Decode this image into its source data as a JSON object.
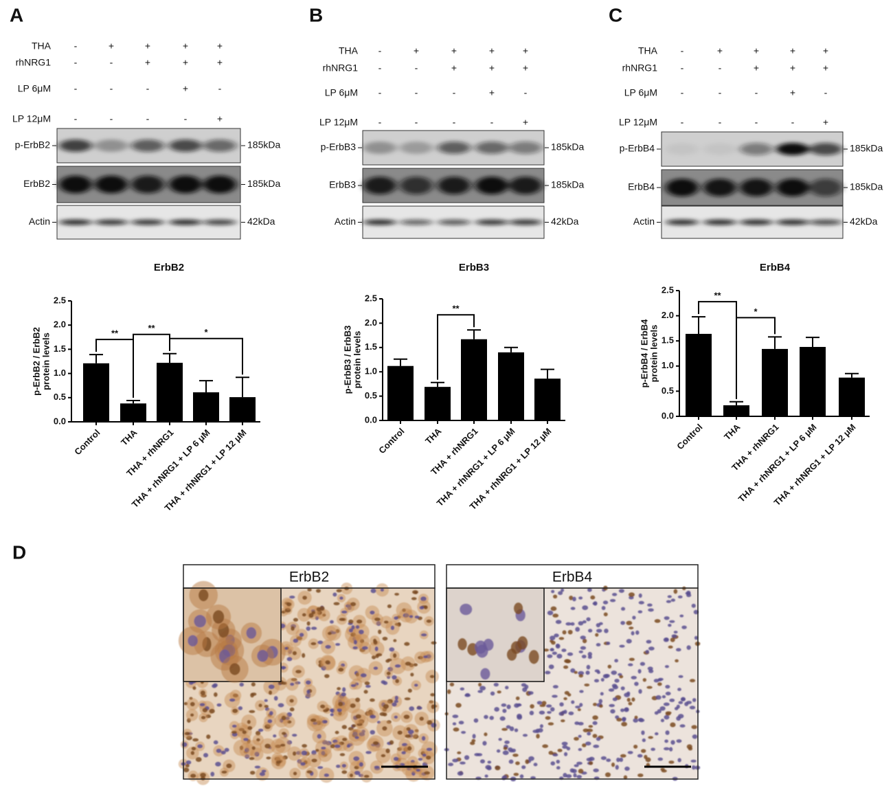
{
  "panel_labels": [
    "A",
    "B",
    "C",
    "D"
  ],
  "blots": [
    {
      "conditions": [
        {
          "label": "THA",
          "lanes": [
            "-",
            "+",
            "+",
            "+",
            "+"
          ]
        },
        {
          "label": "rhNRG1",
          "lanes": [
            "-",
            "-",
            "+",
            "+",
            "+"
          ]
        },
        {
          "label": "LP 6μM",
          "lanes": [
            "-",
            "-",
            "-",
            "+",
            "-"
          ]
        },
        {
          "label": "LP 12μM",
          "lanes": [
            "-",
            "-",
            "-",
            "-",
            "+"
          ]
        }
      ],
      "bands": [
        {
          "label": "p-ErbB2",
          "size": "185kDa"
        },
        {
          "label": "ErbB2",
          "size": "185kDa"
        },
        {
          "label": "Actin",
          "size": "42kDa"
        }
      ]
    },
    {
      "conditions": [
        {
          "label": "THA",
          "lanes": [
            "-",
            "+",
            "+",
            "+",
            "+"
          ]
        },
        {
          "label": "rhNRG1",
          "lanes": [
            "-",
            "-",
            "+",
            "+",
            "+"
          ]
        },
        {
          "label": "LP 6μM",
          "lanes": [
            "-",
            "-",
            "-",
            "+",
            "-"
          ]
        },
        {
          "label": "LP 12μM",
          "lanes": [
            "-",
            "-",
            "-",
            "-",
            "+"
          ]
        }
      ],
      "bands": [
        {
          "label": "p-ErbB3",
          "size": "185kDa"
        },
        {
          "label": "ErbB3",
          "size": "185kDa"
        },
        {
          "label": "Actin",
          "size": "42kDa"
        }
      ]
    },
    {
      "conditions": [
        {
          "label": "THA",
          "lanes": [
            "-",
            "+",
            "+",
            "+",
            "+"
          ]
        },
        {
          "label": "rhNRG1",
          "lanes": [
            "-",
            "-",
            "+",
            "+",
            "+"
          ]
        },
        {
          "label": "LP 6μM",
          "lanes": [
            "-",
            "-",
            "-",
            "+",
            "-"
          ]
        },
        {
          "label": "LP 12μM",
          "lanes": [
            "-",
            "-",
            "-",
            "-",
            "+"
          ]
        }
      ],
      "bands": [
        {
          "label": "p-ErbB4",
          "size": "185kDa"
        },
        {
          "label": "ErbB4",
          "size": "185kDa"
        },
        {
          "label": "Actin",
          "size": "42kDa"
        }
      ]
    }
  ],
  "chart_data": [
    {
      "type": "bar",
      "title": "ErbB2",
      "ylabel": [
        "p-ErbB2 / ErbB2",
        "protein levels"
      ],
      "categories": [
        "Control",
        "THA",
        "THA + rhNRG1",
        "THA + rhNRG1 + LP 6 μM",
        "THA + rhNRG1 + LP 12 μM"
      ],
      "values": [
        1.21,
        0.38,
        1.22,
        0.61,
        0.51
      ],
      "errors": [
        0.18,
        0.06,
        0.19,
        0.24,
        0.41
      ],
      "color": "#000000",
      "ylim": [
        0,
        2.5
      ],
      "yticks": [
        {
          "value": 0,
          "label": "0.0"
        },
        {
          "value": 0.5,
          "label": "0.5"
        },
        {
          "value": 1,
          "label": "1.0"
        },
        {
          "value": 1.5,
          "label": "1.5"
        },
        {
          "value": 2,
          "label": "2.0"
        },
        {
          "value": 2.5,
          "label": "2.5"
        }
      ],
      "annotations": [
        {
          "text": "**",
          "from": 0,
          "to": 1
        },
        {
          "text": "**",
          "from": 1,
          "to": 2
        },
        {
          "text": "*",
          "from": 2,
          "to": 4
        }
      ]
    },
    {
      "type": "bar",
      "title": "ErbB3",
      "ylabel": [
        "p-ErbB3 / ErbB3",
        "protein levels"
      ],
      "categories": [
        "Control",
        "THA",
        "THA + rhNRG1",
        "THA + rhNRG1 + LP 6 μM",
        "THA + rhNRG1 + LP 12 μM"
      ],
      "values": [
        1.12,
        0.69,
        1.67,
        1.4,
        0.86
      ],
      "errors": [
        0.14,
        0.09,
        0.19,
        0.1,
        0.19
      ],
      "color": "#000000",
      "ylim": [
        0,
        2.5
      ],
      "yticks": [
        {
          "value": 0,
          "label": "0.0"
        },
        {
          "value": 0.5,
          "label": "0.5"
        },
        {
          "value": 1,
          "label": "1.0"
        },
        {
          "value": 1.5,
          "label": "1.5"
        },
        {
          "value": 2,
          "label": "2.0"
        },
        {
          "value": 2.5,
          "label": "2.5"
        }
      ],
      "annotations": [
        {
          "text": "**",
          "from": 1,
          "to": 2
        }
      ]
    },
    {
      "type": "bar",
      "title": "ErbB4",
      "ylabel": [
        "p-ErbB4 / ErbB4",
        "protein levels"
      ],
      "categories": [
        "Control",
        "THA",
        "THA + rhNRG1",
        "THA + rhNRG1 + LP 6 μM",
        "THA + rhNRG1 + LP 12 μM"
      ],
      "values": [
        1.64,
        0.22,
        1.34,
        1.38,
        0.77
      ],
      "errors": [
        0.34,
        0.07,
        0.24,
        0.19,
        0.08
      ],
      "color": "#000000",
      "ylim": [
        0,
        2.5
      ],
      "yticks": [
        {
          "value": 0,
          "label": "0.0"
        },
        {
          "value": 0.5,
          "label": "0.5"
        },
        {
          "value": 1,
          "label": "1.0"
        },
        {
          "value": 1.5,
          "label": "1.5"
        },
        {
          "value": 2,
          "label": "2.0"
        },
        {
          "value": 2.5,
          "label": "2.5"
        }
      ],
      "annotations": [
        {
          "text": "**",
          "from": 0,
          "to": 1
        },
        {
          "text": "*",
          "from": 1,
          "to": 2
        }
      ]
    }
  ],
  "histology": [
    {
      "title": "ErbB2"
    },
    {
      "title": "ErbB4"
    }
  ]
}
